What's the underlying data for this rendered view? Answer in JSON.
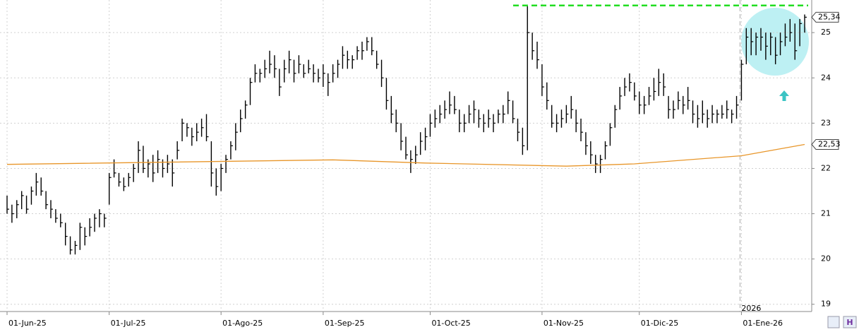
{
  "chart_data": {
    "type": "ohlc",
    "categories": [
      "01-Jun-25",
      null,
      null,
      null,
      null,
      null,
      null,
      null,
      null,
      null,
      null,
      null,
      null,
      null,
      null,
      null,
      null,
      null,
      null,
      null,
      null,
      "01-Jul-25",
      null,
      null,
      null,
      null,
      null,
      null,
      null,
      null,
      null,
      null,
      null,
      null,
      null,
      null,
      null,
      null,
      null,
      null,
      null,
      null,
      null,
      null,
      "01-Ago-25",
      null,
      null,
      null,
      null,
      null,
      null,
      null,
      null,
      null,
      null,
      null,
      null,
      null,
      null,
      null,
      null,
      null,
      null,
      null,
      null,
      "01-Sep-25",
      null,
      null,
      null,
      null,
      null,
      null,
      null,
      null,
      null,
      null,
      null,
      null,
      null,
      null,
      null,
      null,
      null,
      null,
      null,
      null,
      null,
      "01-Oct-25",
      null,
      null,
      null,
      null,
      null,
      null,
      null,
      null,
      null,
      null,
      null,
      null,
      null,
      null,
      null,
      null,
      null,
      null,
      null,
      null,
      null,
      null,
      "01-Nov-25",
      null,
      null,
      null,
      null,
      null,
      null,
      null,
      null,
      null,
      null,
      null,
      null,
      null,
      null,
      null,
      null,
      null,
      null,
      null,
      "01-Dic-25",
      null,
      null,
      null,
      null,
      null,
      null,
      null,
      null,
      null,
      null,
      null,
      null,
      null,
      null,
      null,
      null,
      null,
      null,
      null,
      null,
      "01-Ene-26",
      null,
      null,
      null,
      null,
      null,
      null,
      null,
      null,
      null,
      null,
      null,
      null,
      null
    ],
    "high": [
      21.4,
      21.2,
      21.3,
      21.5,
      21.4,
      21.6,
      21.9,
      21.8,
      21.5,
      21.3,
      21.1,
      21.0,
      20.8,
      20.5,
      20.4,
      20.8,
      20.7,
      20.9,
      21.0,
      21.1,
      21.0,
      21.9,
      22.2,
      21.9,
      21.8,
      21.9,
      22.1,
      22.6,
      22.5,
      22.2,
      22.3,
      22.4,
      22.2,
      22.3,
      22.2,
      22.6,
      23.1,
      23.0,
      22.9,
      23.0,
      23.1,
      23.2,
      22.6,
      22.0,
      22.1,
      22.3,
      22.6,
      23.0,
      23.3,
      23.5,
      24.0,
      24.3,
      24.2,
      24.4,
      24.6,
      24.5,
      24.2,
      24.4,
      24.6,
      24.4,
      24.5,
      24.3,
      24.4,
      24.3,
      24.2,
      24.3,
      24.1,
      24.3,
      24.4,
      24.7,
      24.6,
      24.5,
      24.7,
      24.8,
      24.9,
      24.9,
      24.6,
      24.4,
      24.0,
      23.6,
      23.3,
      23.0,
      22.7,
      22.4,
      22.5,
      22.8,
      22.9,
      23.2,
      23.3,
      23.4,
      23.5,
      23.7,
      23.6,
      23.3,
      23.2,
      23.4,
      23.5,
      23.3,
      23.2,
      23.3,
      23.2,
      23.3,
      23.4,
      23.7,
      23.5,
      23.1,
      22.9,
      25.6,
      25.0,
      24.8,
      24.3,
      23.9,
      23.4,
      23.2,
      23.3,
      23.4,
      23.6,
      23.3,
      23.1,
      22.8,
      22.6,
      22.3,
      22.3,
      22.6,
      23.0,
      23.4,
      23.8,
      24.0,
      24.1,
      23.9,
      23.7,
      23.6,
      23.8,
      24.0,
      24.2,
      24.1,
      23.6,
      23.5,
      23.7,
      23.6,
      23.8,
      23.5,
      23.4,
      23.5,
      23.3,
      23.4,
      23.3,
      23.4,
      23.5,
      23.3,
      23.6,
      24.4,
      25.1,
      25.1,
      25.0,
      25.1,
      25.0,
      25.0,
      24.9,
      25.0,
      25.2,
      25.3,
      25.2,
      25.3,
      25.4
    ],
    "low": [
      21.0,
      20.8,
      20.9,
      21.1,
      21.0,
      21.2,
      21.4,
      21.4,
      21.1,
      20.9,
      20.8,
      20.7,
      20.3,
      20.1,
      20.1,
      20.2,
      20.3,
      20.5,
      20.6,
      20.7,
      20.7,
      21.2,
      21.8,
      21.6,
      21.5,
      21.6,
      21.7,
      21.9,
      21.9,
      21.8,
      21.7,
      21.9,
      21.8,
      21.9,
      21.6,
      22.2,
      22.6,
      22.7,
      22.5,
      22.6,
      22.7,
      22.6,
      21.6,
      21.4,
      21.5,
      21.9,
      22.2,
      22.4,
      22.8,
      23.1,
      23.4,
      23.9,
      23.9,
      24.0,
      24.1,
      24.0,
      23.6,
      23.9,
      24.1,
      23.9,
      24.1,
      24.0,
      24.1,
      23.9,
      23.9,
      23.8,
      23.6,
      23.9,
      24.0,
      24.2,
      24.2,
      24.2,
      24.4,
      24.4,
      24.6,
      24.5,
      24.2,
      23.8,
      23.3,
      23.0,
      22.8,
      22.4,
      22.2,
      21.9,
      22.1,
      22.3,
      22.4,
      22.7,
      22.9,
      23.0,
      23.1,
      23.2,
      23.2,
      22.8,
      22.8,
      23.0,
      23.0,
      22.9,
      22.8,
      22.9,
      22.8,
      23.0,
      23.0,
      23.2,
      23.0,
      22.6,
      22.3,
      22.4,
      24.4,
      24.2,
      23.6,
      23.3,
      22.9,
      22.8,
      22.9,
      23.0,
      23.1,
      22.8,
      22.6,
      22.3,
      22.1,
      21.9,
      21.9,
      22.2,
      22.5,
      22.9,
      23.3,
      23.6,
      23.7,
      23.5,
      23.2,
      23.2,
      23.4,
      23.5,
      23.6,
      23.6,
      23.1,
      23.1,
      23.3,
      23.2,
      23.3,
      23.0,
      22.9,
      23.0,
      22.9,
      23.0,
      23.0,
      23.1,
      23.1,
      23.0,
      23.1,
      23.5,
      24.3,
      24.5,
      24.5,
      24.6,
      24.4,
      24.5,
      24.3,
      24.5,
      24.7,
      24.8,
      24.4,
      24.7,
      25.0
    ],
    "close": [
      21.1,
      21.0,
      21.2,
      21.4,
      21.1,
      21.5,
      21.7,
      21.5,
      21.2,
      21.1,
      20.9,
      20.8,
      20.5,
      20.2,
      20.3,
      20.7,
      20.5,
      20.7,
      20.9,
      21.0,
      20.9,
      21.8,
      21.9,
      21.7,
      21.6,
      21.8,
      22.0,
      22.4,
      22.0,
      22.1,
      21.9,
      22.2,
      22.0,
      22.1,
      21.9,
      22.4,
      23.0,
      22.9,
      22.7,
      22.8,
      22.9,
      22.7,
      21.9,
      21.6,
      22.0,
      22.2,
      22.5,
      22.8,
      23.1,
      23.4,
      23.9,
      24.1,
      24.1,
      24.2,
      24.3,
      24.2,
      23.8,
      24.2,
      24.4,
      24.1,
      24.3,
      24.1,
      24.2,
      24.1,
      24.0,
      24.1,
      23.9,
      24.1,
      24.3,
      24.5,
      24.4,
      24.4,
      24.6,
      24.6,
      24.8,
      24.6,
      24.3,
      24.0,
      23.5,
      23.2,
      23.0,
      22.6,
      22.3,
      22.2,
      22.3,
      22.6,
      22.7,
      23.0,
      23.1,
      23.2,
      23.3,
      23.4,
      23.3,
      23.0,
      23.0,
      23.2,
      23.3,
      23.1,
      23.0,
      23.1,
      23.0,
      23.2,
      23.2,
      23.5,
      23.1,
      22.8,
      22.5,
      25.0,
      24.6,
      24.4,
      23.8,
      23.5,
      23.0,
      23.0,
      23.1,
      23.2,
      23.3,
      23.0,
      22.8,
      22.5,
      22.3,
      22.1,
      22.2,
      22.5,
      22.9,
      23.3,
      23.6,
      23.8,
      23.9,
      23.6,
      23.4,
      23.4,
      23.6,
      23.7,
      23.9,
      23.8,
      23.3,
      23.3,
      23.5,
      23.4,
      23.5,
      23.2,
      23.1,
      23.2,
      23.1,
      23.2,
      23.2,
      23.2,
      23.3,
      23.2,
      23.4,
      24.3,
      24.9,
      24.8,
      24.9,
      24.9,
      24.7,
      24.9,
      24.5,
      24.8,
      24.9,
      25.0,
      24.6,
      25.2,
      25.34
    ],
    "color": "#000000",
    "ma": {
      "x": [
        0,
        67,
        86,
        115,
        129,
        151,
        164
      ],
      "values": [
        22.09,
        22.19,
        22.12,
        22.05,
        22.1,
        22.28,
        22.53
      ],
      "color": "#e8962a"
    },
    "close_label": {
      "value": 25.34,
      "label": "25,34"
    },
    "ma_label": {
      "value": 22.53,
      "label": "22,53"
    },
    "resistance_level": 25.6,
    "year_marker": "2026",
    "ylim": [
      18.84,
      25.72
    ],
    "yticks": [
      19,
      20,
      21,
      22,
      23,
      24,
      25
    ],
    "grid": true
  }
}
